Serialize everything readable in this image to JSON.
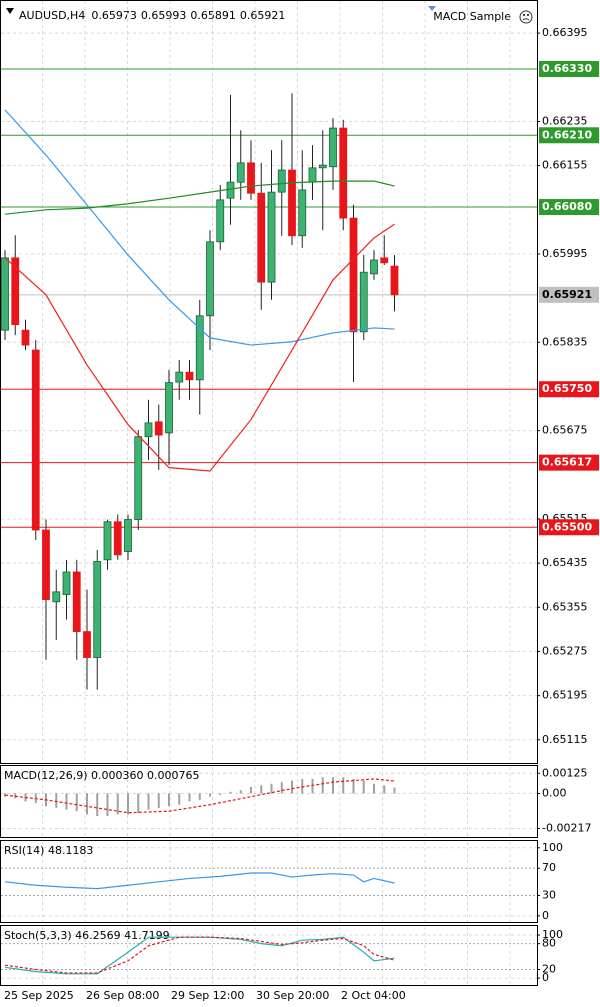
{
  "header": {
    "symbol": "AUDUSD,H4",
    "ohlc": [
      0.65973,
      0.65993,
      0.65891,
      0.65921
    ],
    "expert": "MACD Sample"
  },
  "x_labels": [
    "25 Sep 2025",
    "26 Sep 08:00",
    "29 Sep 12:00",
    "30 Sep 20:00",
    "2 Oct 04:00"
  ],
  "chart_data": [
    {
      "type": "candlestick",
      "up_color": "#3cb371",
      "down_color": "#e8161b",
      "ylim": [
        0.65073,
        0.66455
      ],
      "yticks": [
        0.66395,
        0.66235,
        0.66155,
        0.65995,
        0.65835,
        0.65675,
        0.65515,
        0.65435,
        0.65355,
        0.65275,
        0.65195,
        0.65115
      ],
      "grid": true,
      "ohlc": [
        [
          0.65857,
          0.66002,
          0.65839,
          0.65988
        ],
        [
          0.65988,
          0.66029,
          0.65848,
          0.65867
        ],
        [
          0.65857,
          0.65876,
          0.65821,
          0.6583
        ],
        [
          0.65821,
          0.65839,
          0.65477,
          0.65495
        ],
        [
          0.65495,
          0.65514,
          0.6526,
          0.65369
        ],
        [
          0.65365,
          0.65423,
          0.65296,
          0.65383
        ],
        [
          0.65378,
          0.65441,
          0.65333,
          0.65419
        ],
        [
          0.65419,
          0.65441,
          0.6526,
          0.65311
        ],
        [
          0.65311,
          0.65387,
          0.65206,
          0.65264
        ],
        [
          0.65264,
          0.65459,
          0.65206,
          0.65438
        ],
        [
          0.65441,
          0.65514,
          0.65423,
          0.6551
        ],
        [
          0.6551,
          0.65523,
          0.65441,
          0.6545
        ],
        [
          0.65456,
          0.65523,
          0.65441,
          0.65514
        ],
        [
          0.65514,
          0.65676,
          0.65495,
          0.65664
        ],
        [
          0.65664,
          0.65731,
          0.65622,
          0.65689
        ],
        [
          0.65691,
          0.65722,
          0.65604,
          0.65667
        ],
        [
          0.65671,
          0.65785,
          0.65613,
          0.65762
        ],
        [
          0.65763,
          0.65803,
          0.65731,
          0.65781
        ],
        [
          0.65781,
          0.65803,
          0.65731,
          0.65767
        ],
        [
          0.65767,
          0.65912,
          0.65704,
          0.65883
        ],
        [
          0.65883,
          0.66038,
          0.65821,
          0.66017
        ],
        [
          0.66017,
          0.6612,
          0.66002,
          0.66093
        ],
        [
          0.66096,
          0.66283,
          0.66048,
          0.66125
        ],
        [
          0.66125,
          0.66219,
          0.66093,
          0.6616
        ],
        [
          0.6616,
          0.66201,
          0.66093,
          0.66105
        ],
        [
          0.66105,
          0.6616,
          0.65894,
          0.65944
        ],
        [
          0.65944,
          0.66183,
          0.65912,
          0.66107
        ],
        [
          0.66107,
          0.66201,
          0.66028,
          0.66147
        ],
        [
          0.66147,
          0.66286,
          0.66011,
          0.66028
        ],
        [
          0.66028,
          0.66183,
          0.66006,
          0.66111
        ],
        [
          0.66125,
          0.66192,
          0.66093,
          0.66151
        ],
        [
          0.66151,
          0.66219,
          0.66038,
          0.66156
        ],
        [
          0.66153,
          0.66241,
          0.66111,
          0.66223
        ],
        [
          0.66223,
          0.66238,
          0.66038,
          0.6606
        ],
        [
          0.6606,
          0.66084,
          0.65763,
          0.65854
        ],
        [
          0.65854,
          0.65993,
          0.65839,
          0.65962
        ],
        [
          0.65959,
          0.66002,
          0.65948,
          0.65984
        ],
        [
          0.65988,
          0.66029,
          0.65975,
          0.65979
        ],
        [
          0.65973,
          0.65993,
          0.65891,
          0.65921
        ]
      ],
      "series": [
        {
          "color": "#3399ee",
          "x": [
            0,
            4,
            8,
            12,
            16,
            20,
            24,
            28,
            32,
            36,
            38
          ],
          "values": [
            0.66256,
            0.66174,
            0.66084,
            0.65993,
            0.65912,
            0.65843,
            0.6583,
            0.65836,
            0.65852,
            0.65861,
            0.65859
          ]
        },
        {
          "color": "#ee2222",
          "x": [
            0,
            4,
            8,
            12,
            16,
            20,
            24,
            28,
            32,
            36,
            38
          ],
          "values": [
            0.65988,
            0.65921,
            0.65794,
            0.65686,
            0.65608,
            0.65602,
            0.65695,
            0.65821,
            0.65948,
            0.66024,
            0.66049
          ]
        },
        {
          "color": "#228b22",
          "x": [
            0,
            4,
            8,
            12,
            16,
            20,
            24,
            28,
            32,
            36,
            38
          ],
          "values": [
            0.66067,
            0.66075,
            0.66078,
            0.66086,
            0.66096,
            0.66107,
            0.66118,
            0.66124,
            0.66127,
            0.66127,
            0.66118
          ]
        }
      ],
      "levels": [
        {
          "value": 0.6633,
          "label": "0.66330",
          "color": "#2e9a2e"
        },
        {
          "value": 0.6621,
          "label": "0.66210",
          "color": "#2e9a2e"
        },
        {
          "value": 0.6608,
          "label": "0.66080",
          "color": "#2e9a2e"
        },
        {
          "value": 0.6575,
          "label": "0.65750",
          "color": "#e8161b"
        },
        {
          "value": 0.65617,
          "label": "0.65617",
          "color": "#e8161b"
        },
        {
          "value": 0.655,
          "label": "0.65500",
          "color": "#e8161b"
        }
      ],
      "current": {
        "value": 0.65921,
        "label": "0.65921",
        "color": "#c0c0c0"
      }
    },
    {
      "type": "bar",
      "title": "MACD(12,26,9) 0.000360 0.000765",
      "color": "#a0a0a0",
      "ylim": [
        -0.0027,
        0.0017
      ],
      "yticks": [
        0.00125,
        {
          "value": 0,
          "label": "0.00"
        },
        -0.00217
      ],
      "values": [
        -0.0002,
        -0.0003,
        -0.0005,
        -0.0006,
        -0.0008,
        -0.0009,
        -0.001,
        -0.0011,
        -0.0013,
        -0.0014,
        -0.0014,
        -0.0013,
        -0.0013,
        -0.0012,
        -0.001,
        -0.0009,
        -0.0008,
        -0.0007,
        -0.0005,
        -0.0004,
        -0.0002,
        -0.0001,
        0.0001,
        0.0002,
        0.0004,
        0.0005,
        0.0006,
        0.0007,
        0.0008,
        0.0009,
        0.0009,
        0.001,
        0.001,
        0.001,
        0.0009,
        0.0008,
        0.0006,
        0.0005,
        0.00036
      ],
      "series": [
        {
          "color": "#e8161b",
          "dash": true,
          "x": [
            0,
            4,
            8,
            12,
            16,
            20,
            24,
            28,
            32,
            36,
            38
          ],
          "values": [
            -0.0001,
            -0.0004,
            -0.0008,
            -0.0012,
            -0.0011,
            -0.0007,
            -0.0002,
            0.0003,
            0.0007,
            0.0009,
            0.000765
          ]
        }
      ]
    },
    {
      "type": "line",
      "title": "RSI(14) 48.1183",
      "ylim": [
        -9,
        110
      ],
      "yticks": [
        100,
        70,
        30,
        0
      ],
      "levels": [
        70,
        30
      ],
      "series": [
        {
          "color": "#3399ee",
          "x": [
            0,
            3,
            6,
            9,
            12,
            15,
            18,
            21,
            24,
            26,
            28,
            30,
            32,
            34,
            35,
            36,
            38
          ],
          "values": [
            50,
            45,
            42,
            40,
            45,
            50,
            55,
            58,
            63,
            63,
            57,
            60,
            62,
            60,
            50,
            55,
            48.1183
          ]
        }
      ]
    },
    {
      "type": "line",
      "title": "Stoch(5,3,3) 46.2569 41.7199",
      "ylim": [
        -16,
        121
      ],
      "yticks": [
        100,
        80,
        20,
        0
      ],
      "levels": [
        80,
        20
      ],
      "series": [
        {
          "color": "#20b2aa",
          "x": [
            0,
            3,
            6,
            9,
            12,
            14,
            17,
            20,
            23,
            25,
            27,
            29,
            31,
            33,
            35,
            36,
            38
          ],
          "values": [
            25,
            15,
            10,
            10,
            60,
            95,
            95,
            95,
            90,
            80,
            75,
            88,
            90,
            95,
            60,
            40,
            46.2569
          ]
        },
        {
          "color": "#e8161b",
          "dash": true,
          "x": [
            0,
            3,
            6,
            9,
            12,
            14,
            17,
            20,
            23,
            25,
            27,
            29,
            31,
            33,
            35,
            36,
            38
          ],
          "values": [
            30,
            20,
            12,
            12,
            40,
            75,
            95,
            95,
            92,
            85,
            78,
            82,
            88,
            92,
            75,
            55,
            41.7199
          ]
        }
      ]
    }
  ]
}
